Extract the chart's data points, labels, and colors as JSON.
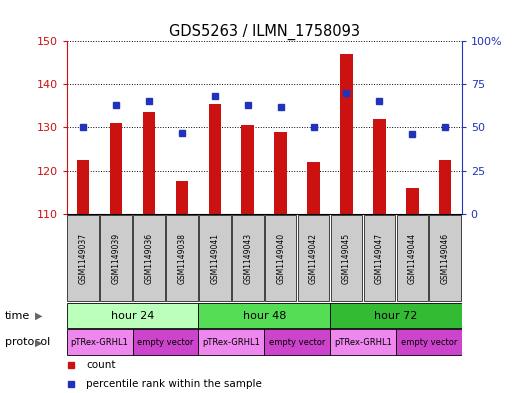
{
  "title": "GDS5263 / ILMN_1758093",
  "samples": [
    "GSM1149037",
    "GSM1149039",
    "GSM1149036",
    "GSM1149038",
    "GSM1149041",
    "GSM1149043",
    "GSM1149040",
    "GSM1149042",
    "GSM1149045",
    "GSM1149047",
    "GSM1149044",
    "GSM1149046"
  ],
  "counts": [
    122.5,
    131.0,
    133.5,
    117.5,
    135.5,
    130.5,
    129.0,
    122.0,
    147.0,
    132.0,
    116.0,
    122.5
  ],
  "percentiles": [
    50,
    63,
    65,
    47,
    68,
    63,
    62,
    50,
    70,
    65,
    46,
    50
  ],
  "ylim_left": [
    110,
    150
  ],
  "ylim_right": [
    0,
    100
  ],
  "yticks_left": [
    110,
    120,
    130,
    140,
    150
  ],
  "yticks_right": [
    0,
    25,
    50,
    75,
    100
  ],
  "bar_color": "#cc1111",
  "dot_color": "#2233bb",
  "grid_color": "#555555",
  "time_groups": [
    {
      "label": "hour 24",
      "start": 0,
      "end": 4
    },
    {
      "label": "hour 48",
      "start": 4,
      "end": 8
    },
    {
      "label": "hour 72",
      "start": 8,
      "end": 12
    }
  ],
  "time_colors": [
    "#bbffbb",
    "#55dd55",
    "#33bb33"
  ],
  "protocol_groups": [
    {
      "label": "pTRex-GRHL1",
      "start": 0,
      "end": 2
    },
    {
      "label": "empty vector",
      "start": 2,
      "end": 4
    },
    {
      "label": "pTRex-GRHL1",
      "start": 4,
      "end": 6
    },
    {
      "label": "empty vector",
      "start": 6,
      "end": 8
    },
    {
      "label": "pTRex-GRHL1",
      "start": 8,
      "end": 10
    },
    {
      "label": "empty vector",
      "start": 10,
      "end": 12
    }
  ],
  "proto_colors": [
    "#ee88ee",
    "#cc44cc"
  ],
  "sample_box_color": "#cccccc",
  "fig_width": 5.13,
  "fig_height": 3.93,
  "dpi": 100
}
